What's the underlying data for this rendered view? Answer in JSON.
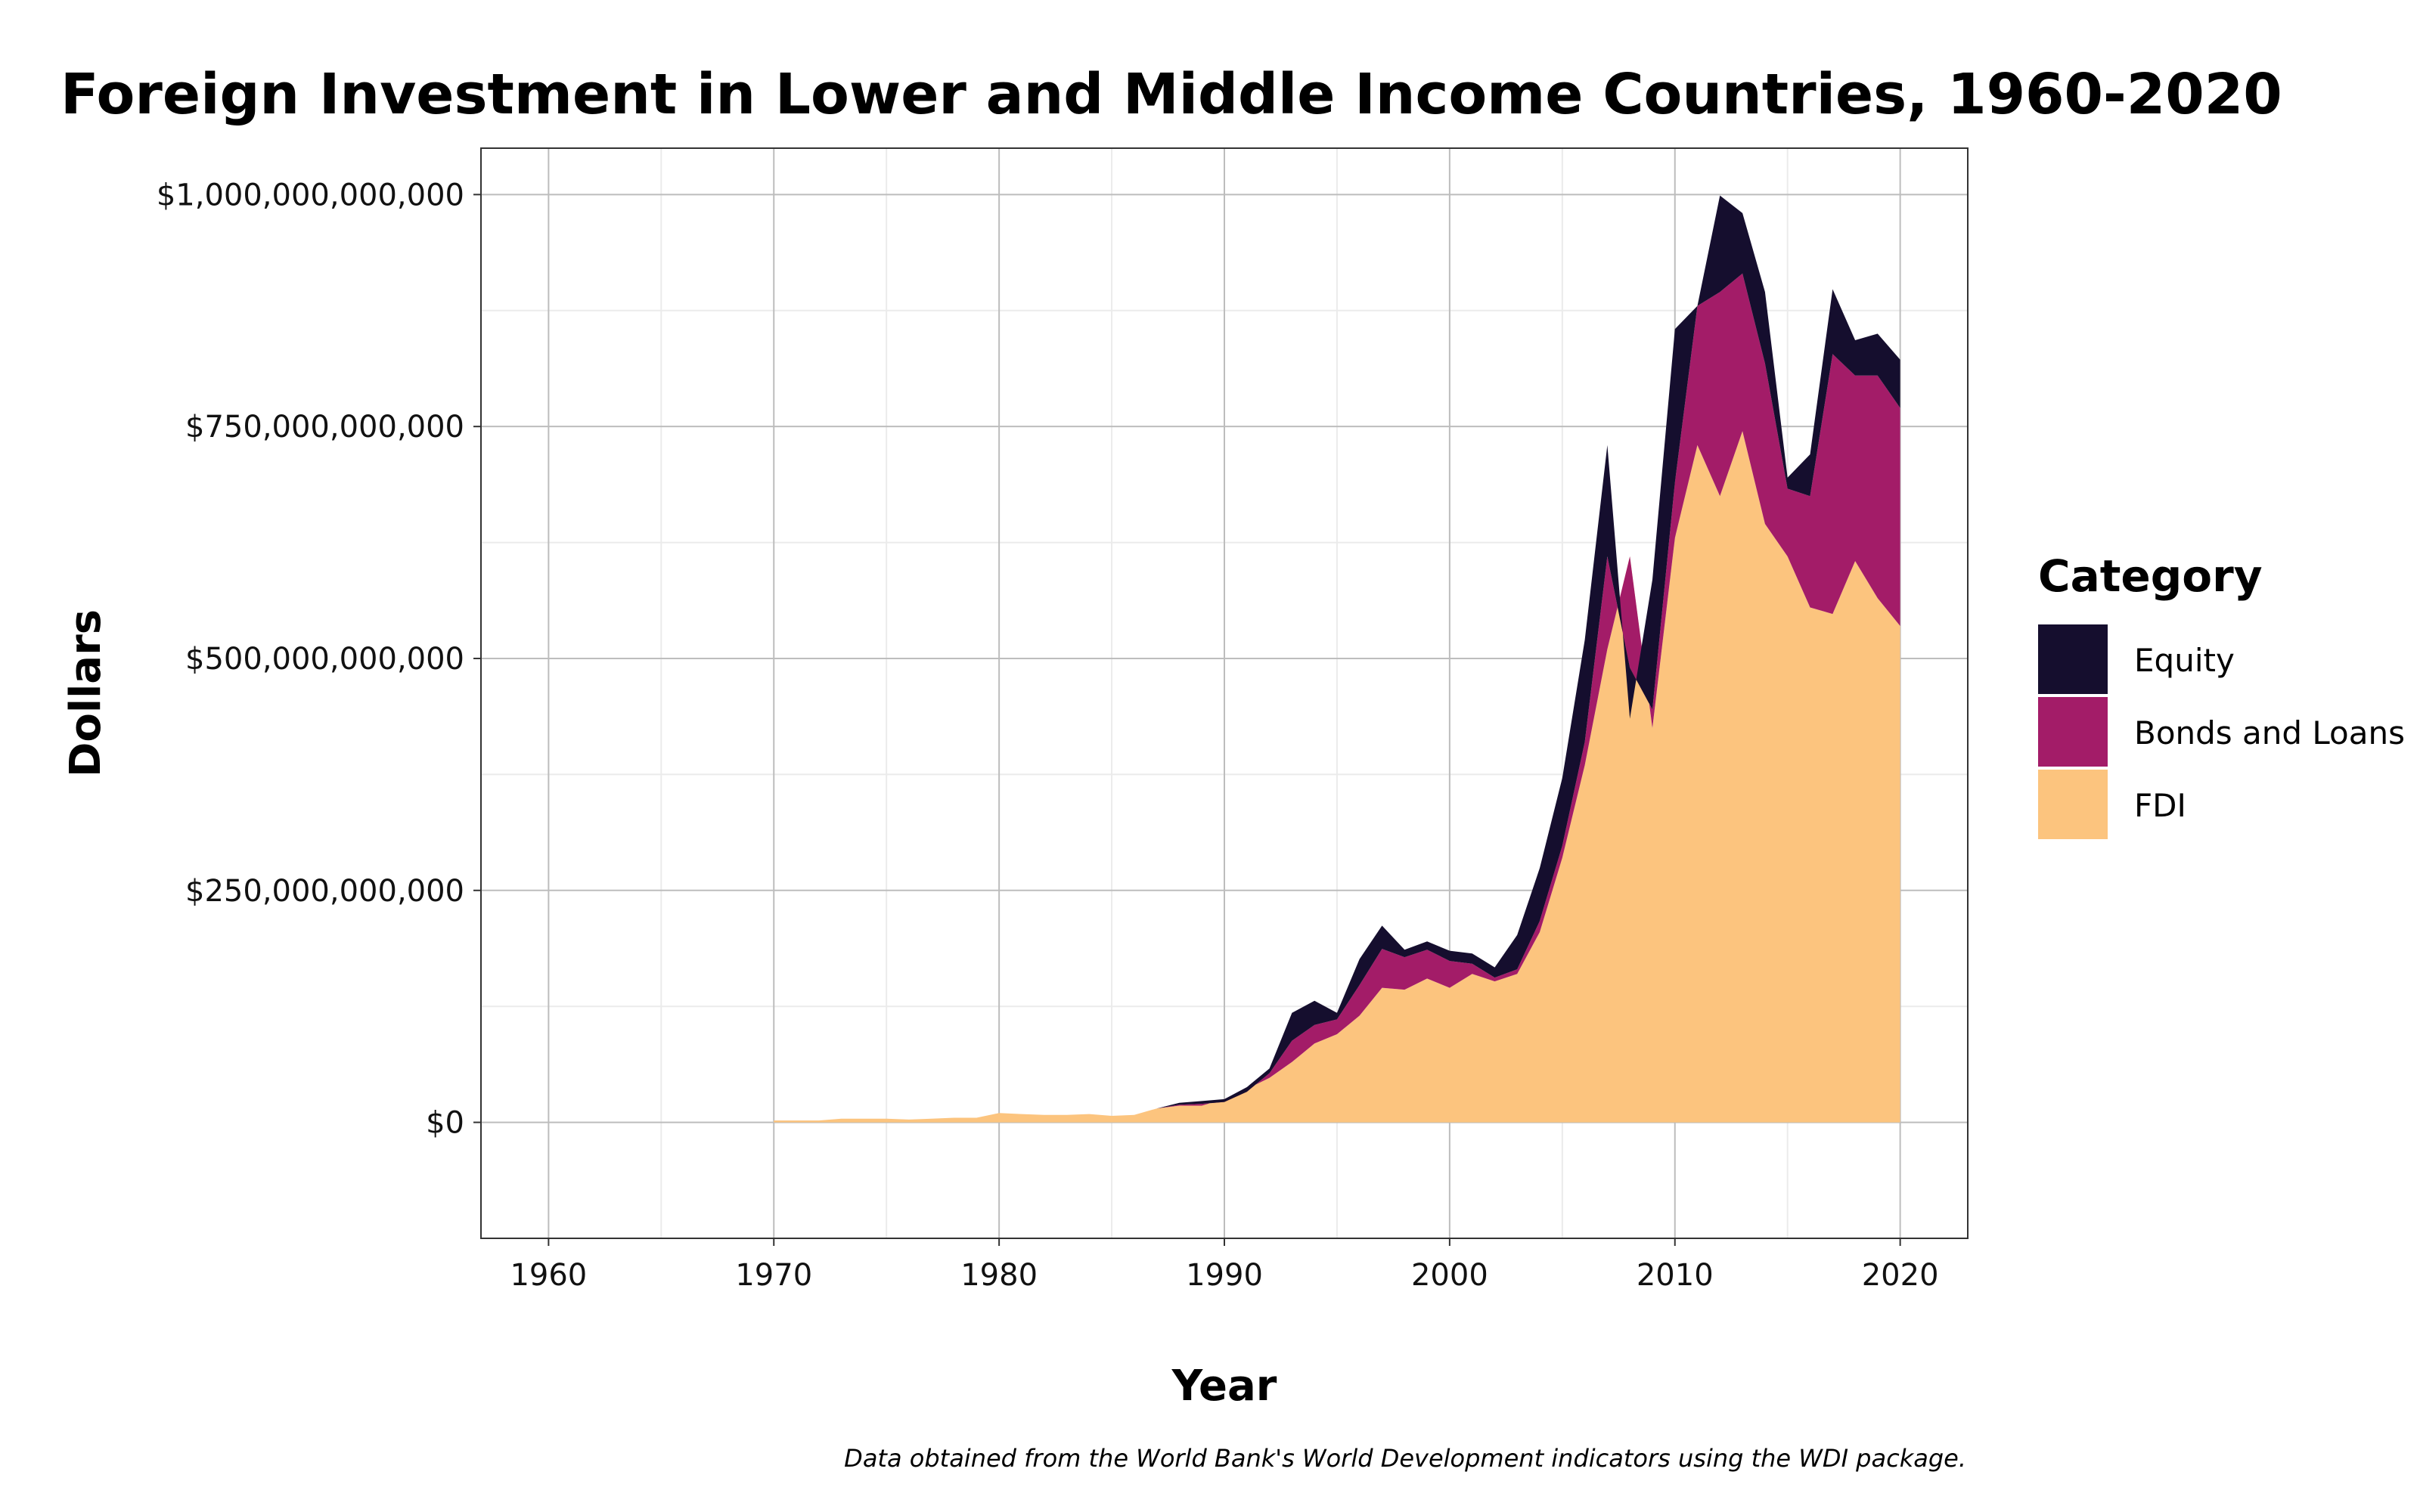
{
  "chart_data": {
    "type": "area",
    "stacked": true,
    "title": "Foreign Investment in Lower and Middle Income Countries, 1960-2020",
    "xlabel": "Year",
    "ylabel": "Dollars",
    "caption": "Data obtained from the World Bank's World Development indicators using the WDI package.",
    "xlim": [
      1957,
      2023
    ],
    "ylim": [
      -125000000000,
      1050000000000
    ],
    "x_ticks": [
      1960,
      1970,
      1980,
      1990,
      2000,
      2010,
      2020
    ],
    "x_tick_labels": [
      "1960",
      "1970",
      "1980",
      "1990",
      "2000",
      "2010",
      "2020"
    ],
    "y_ticks": [
      0,
      250000000000,
      500000000000,
      750000000000,
      1000000000000
    ],
    "y_tick_labels": [
      "$0",
      "$250,000,000,000",
      "$500,000,000,000",
      "$750,000,000,000",
      "$1,000,000,000,000"
    ],
    "grid": true,
    "legend": {
      "title": "Category",
      "placement": "right",
      "entries": [
        "Equity",
        "Bonds and Loans",
        "FDI"
      ]
    },
    "colors": {
      "Equity": "#150e2e",
      "Bonds and Loans": "#a31c68",
      "FDI": "#fcc47e"
    },
    "x": [
      1970,
      1971,
      1972,
      1973,
      1974,
      1975,
      1976,
      1977,
      1978,
      1979,
      1980,
      1981,
      1982,
      1983,
      1984,
      1985,
      1986,
      1987,
      1988,
      1989,
      1990,
      1991,
      1992,
      1993,
      1994,
      1995,
      1996,
      1997,
      1998,
      1999,
      2000,
      2001,
      2002,
      2003,
      2004,
      2005,
      2006,
      2007,
      2008,
      2009,
      2010,
      2011,
      2012,
      2013,
      2014,
      2015,
      2016,
      2017,
      2018,
      2019,
      2020
    ],
    "series": [
      {
        "name": "FDI",
        "values": [
          2,
          2,
          2,
          4,
          4,
          4,
          3,
          4,
          5,
          5,
          10,
          9,
          8,
          8,
          9,
          7,
          8,
          15,
          18,
          18,
          25,
          36,
          48,
          65,
          85,
          95,
          115,
          145,
          143,
          155,
          145,
          160,
          152,
          160,
          205,
          285,
          385,
          510,
          610,
          425,
          630,
          730,
          675,
          745,
          645,
          610,
          555,
          548,
          605,
          565,
          535
        ]
      },
      {
        "name": "Bonds and Loans",
        "values": [
          0,
          0,
          0,
          0,
          0,
          0,
          0,
          0,
          0,
          0,
          0,
          0,
          0,
          0,
          0,
          0,
          0,
          0,
          1,
          2,
          -3,
          -3,
          5,
          23,
          20,
          16,
          33,
          42,
          35,
          31,
          29,
          11,
          4,
          5,
          12,
          13,
          25,
          100,
          -120,
          20,
          60,
          150,
          220,
          170,
          173,
          73,
          120,
          280,
          200,
          240,
          235
        ]
      },
      {
        "name": "Equity",
        "values": [
          0,
          0,
          0,
          0,
          0,
          0,
          0,
          0,
          0,
          0,
          0,
          0,
          0,
          0,
          0,
          0,
          0,
          0,
          2,
          3,
          3,
          5,
          5,
          30,
          26,
          7,
          28,
          25,
          8,
          9,
          11,
          11,
          11,
          37,
          57,
          73,
          110,
          120,
          -55,
          140,
          165,
          0,
          104,
          65,
          77,
          12,
          45,
          70,
          38,
          45,
          52
        ]
      }
    ],
    "value_unit": "billions USD"
  }
}
